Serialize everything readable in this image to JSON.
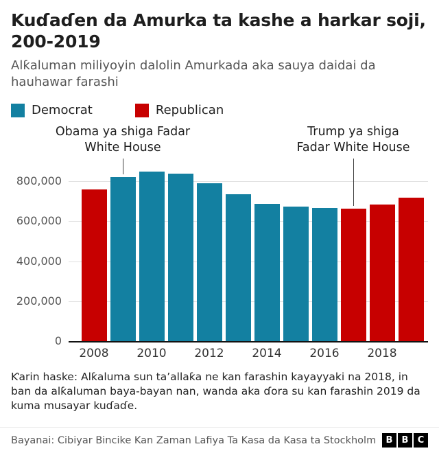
{
  "header": {
    "title": "Kuɗaɗen da Amurka ta kashe a harkar soji, 200-2019",
    "subtitle": "Alƙaluman miliyoyin dalolin Amurkada aka sauya daidai da hauhawar farashi"
  },
  "legend": [
    {
      "label": "Democrat",
      "color": "#1380A1"
    },
    {
      "label": "Republican",
      "color": "#C70000"
    }
  ],
  "annotations": [
    {
      "id": "obama",
      "text": "Obama ya shiga Fadar White House",
      "year": 2009
    },
    {
      "id": "trump",
      "text": "Trump ya shiga Fadar White House",
      "year": 2017
    }
  ],
  "chart_data": {
    "type": "bar",
    "title": "Kuɗaɗen da Amurka ta kashe a harkar soji, 200-2019",
    "subtitle": "Alƙaluman miliyoyin dalolin Amurkada aka sauya daidai da hauhawar farashi",
    "x": [
      2008,
      2009,
      2010,
      2011,
      2012,
      2013,
      2014,
      2015,
      2016,
      2017,
      2018,
      2019
    ],
    "values": [
      760000,
      822000,
      848000,
      838000,
      791000,
      734000,
      688000,
      672000,
      668000,
      662000,
      683000,
      718000
    ],
    "parties": [
      "Republican",
      "Democrat",
      "Democrat",
      "Democrat",
      "Democrat",
      "Democrat",
      "Democrat",
      "Democrat",
      "Democrat",
      "Republican",
      "Republican",
      "Republican"
    ],
    "colors": {
      "Democrat": "#1380A1",
      "Republican": "#C70000"
    },
    "ylim": [
      0,
      852000
    ],
    "yticks": [
      0,
      200000,
      400000,
      600000,
      800000
    ],
    "xticks": [
      2008,
      2010,
      2012,
      2014,
      2016,
      2018
    ],
    "xlabel": "",
    "ylabel": "",
    "grid": true,
    "legend_position": "top"
  },
  "footnote": "Ƙarin haske: Alƙaluma sun taʼallaƙa ne kan farashin kayayyaki na 2018, in ban da alƙaluman baya-bayan nan, wanda aka ɗora su kan farashin 2019 da kuma musayar kuɗaɗe.",
  "source": "Bayanai: Cibiyar Bincike Kan Zaman Lafiya Ta Kasa da Kasa ta Stockholm",
  "logo": [
    "B",
    "B",
    "C"
  ]
}
